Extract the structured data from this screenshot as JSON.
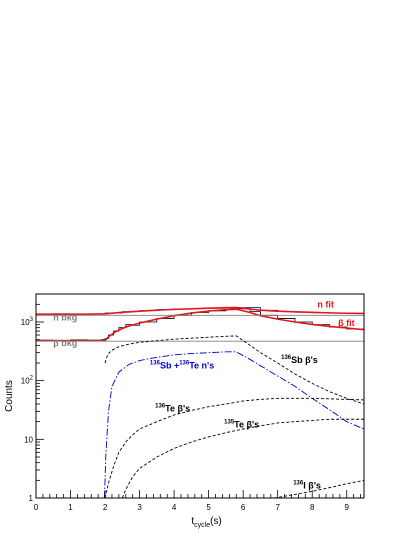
{
  "chart_data": {
    "type": "line",
    "title": "",
    "xlabel": {
      "main": "t",
      "sub": "cycle",
      "unit": "(s)"
    },
    "ylabel": "Counts",
    "xlim": [
      0,
      9.5
    ],
    "ylim": [
      1,
      3000
    ],
    "yscale": "log",
    "grid": false,
    "legend": "none",
    "x_ticks": [
      "0",
      "1",
      "2",
      "3",
      "4",
      "5",
      "6",
      "7",
      "8",
      "9"
    ],
    "x_tick_values": [
      0,
      1,
      2,
      3,
      4,
      5,
      6,
      7,
      8,
      9
    ],
    "y_ticks": [
      {
        "value": 1,
        "base": "1",
        "exp": ""
      },
      {
        "value": 10,
        "base": "10",
        "exp": ""
      },
      {
        "value": 100,
        "base": "10",
        "exp": "2"
      },
      {
        "value": 1000,
        "base": "10",
        "exp": "3"
      }
    ],
    "series": [
      {
        "color": "#000080",
        "style": "step",
        "x": [
          0,
          0.5,
          1,
          1.5,
          2,
          2.5,
          3,
          3.5,
          4,
          4.5,
          5,
          5.5,
          5.8,
          6.5,
          7,
          7.5,
          8,
          8.5,
          9,
          9.5
        ],
        "y": [
          1350,
          1380,
          1340,
          1370,
          1420,
          1500,
          1560,
          1620,
          1660,
          1700,
          1720,
          1740,
          1760,
          1580,
          1510,
          1470,
          1440,
          1420,
          1400,
          1390
        ]
      },
      {
        "color": "#000000",
        "style": "step",
        "x": [
          0,
          0.5,
          1,
          1.5,
          1.9,
          2.0,
          2.1,
          2.25,
          2.4,
          2.6,
          2.8,
          3.0,
          3.5,
          4,
          4.5,
          5,
          5.5,
          5.8,
          6.2,
          6.5,
          7,
          7.5,
          8,
          8.5,
          9,
          9.5
        ],
        "y": [
          490,
          485,
          495,
          490,
          500,
          520,
          600,
          700,
          800,
          900,
          880,
          1000,
          1150,
          1300,
          1450,
          1550,
          1620,
          1680,
          1500,
          1300,
          1150,
          1000,
          900,
          820,
          760,
          700
        ]
      },
      {
        "name": "n fit",
        "color": "#e0181e",
        "style": "solid",
        "x": [
          0,
          0.5,
          1,
          1.5,
          2,
          2.5,
          3,
          3.5,
          4,
          4.5,
          5,
          5.5,
          5.8,
          6.2,
          6.5,
          7,
          7.5,
          8,
          8.5,
          9,
          9.5
        ],
        "y": [
          1360,
          1360,
          1360,
          1360,
          1380,
          1460,
          1530,
          1590,
          1640,
          1680,
          1720,
          1750,
          1760,
          1660,
          1590,
          1530,
          1490,
          1460,
          1430,
          1410,
          1400
        ]
      },
      {
        "name": "β fit",
        "color": "#e0181e",
        "style": "solid",
        "x": [
          0,
          0.5,
          1,
          1.5,
          2,
          2.1,
          2.3,
          2.6,
          3,
          3.5,
          4,
          4.5,
          5,
          5.5,
          5.8,
          6.2,
          6.5,
          7,
          7.5,
          8,
          8.5,
          9,
          9.5
        ],
        "y": [
          480,
          480,
          480,
          480,
          480,
          560,
          680,
          820,
          960,
          1120,
          1280,
          1420,
          1540,
          1620,
          1660,
          1450,
          1280,
          1120,
          1000,
          910,
          840,
          790,
          740
        ]
      },
      {
        "name": "n bkg",
        "color": "#808080",
        "style": "solid",
        "x": [
          0,
          9.5
        ],
        "y": [
          1300,
          1300
        ]
      },
      {
        "name": "β bkg",
        "color": "#808080",
        "style": "solid",
        "x": [
          0,
          9.5
        ],
        "y": [
          470,
          470
        ]
      },
      {
        "name": "136Sb β's",
        "color": "#000000",
        "style": "dashed",
        "x": [
          2.0,
          2.05,
          2.1,
          2.2,
          2.4,
          2.7,
          3,
          3.5,
          4,
          4.5,
          5,
          5.5,
          5.8,
          6.2,
          6.5,
          7,
          7.5,
          8,
          8.5,
          9,
          9.5
        ],
        "y": [
          200,
          250,
          290,
          330,
          380,
          420,
          450,
          480,
          510,
          530,
          550,
          570,
          580,
          400,
          300,
          200,
          130,
          90,
          65,
          50,
          40
        ]
      },
      {
        "name": "136Sb + 136Te n's",
        "color": "#0000cc",
        "style": "dashdot",
        "x": [
          1.98,
          2.0,
          2.02,
          2.05,
          2.1,
          2.2,
          2.4,
          2.7,
          3,
          3.5,
          4,
          4.5,
          5,
          5.5,
          5.8,
          6.2,
          6.5,
          7,
          7.5,
          8,
          8.5,
          9,
          9.5
        ],
        "y": [
          1,
          2,
          5,
          10,
          30,
          80,
          140,
          190,
          220,
          250,
          275,
          290,
          300,
          310,
          310,
          230,
          180,
          120,
          80,
          50,
          32,
          20,
          15
        ]
      },
      {
        "name": "136Te β's",
        "color": "#000000",
        "style": "dashed",
        "x": [
          2.0,
          2.1,
          2.25,
          2.4,
          2.6,
          2.8,
          3,
          3.5,
          4,
          4.5,
          5,
          5.5,
          6,
          6.5,
          7,
          7.5,
          8,
          8.5,
          9,
          9.5
        ],
        "y": [
          1,
          1.8,
          3.5,
          6,
          9,
          12,
          15,
          20,
          26,
          31,
          36,
          40,
          45,
          48,
          50,
          50,
          50,
          49,
          48,
          47
        ]
      },
      {
        "name": "135Te β's",
        "color": "#000000",
        "style": "dashed",
        "x": [
          2.5,
          2.6,
          2.8,
          3,
          3.5,
          4,
          4.5,
          5,
          5.5,
          6,
          6.5,
          7,
          7.5,
          8,
          8.5,
          9,
          9.5
        ],
        "y": [
          1,
          1.4,
          2.3,
          3.2,
          5,
          7,
          9,
          11,
          13,
          15,
          17,
          19,
          20,
          21,
          22,
          22,
          22
        ]
      },
      {
        "name": "136I β's",
        "color": "#000000",
        "style": "dashed",
        "x": [
          6.9,
          7.0,
          7.5,
          8,
          8.5,
          9,
          9.5
        ],
        "y": [
          1,
          1.02,
          1.15,
          1.3,
          1.5,
          1.75,
          2.0
        ]
      }
    ],
    "annotations": [
      {
        "id": "n-fit",
        "color": "#e0181e",
        "x": 8.15,
        "y": 1750,
        "parts": [
          {
            "t": "n fit",
            "sup": false
          }
        ]
      },
      {
        "id": "beta-fit",
        "color": "#e0181e",
        "x": 8.75,
        "y": 850,
        "parts": [
          {
            "t": "β fit",
            "sup": false
          }
        ]
      },
      {
        "id": "n-bkg",
        "color": "#808080",
        "x": 0.5,
        "y": 1050,
        "weight": "normal",
        "parts": [
          {
            "t": "n bkg",
            "sup": false
          }
        ]
      },
      {
        "id": "beta-bkg",
        "color": "#808080",
        "x": 0.5,
        "y": 390,
        "weight": "normal",
        "parts": [
          {
            "t": "β bkg",
            "sup": false
          }
        ]
      },
      {
        "id": "sb136-beta",
        "color": "#000000",
        "x": 7.1,
        "y": 200,
        "parts": [
          {
            "t": "136",
            "sup": true
          },
          {
            "t": "Sb  β's",
            "sup": false
          }
        ]
      },
      {
        "id": "sb-te-n",
        "color": "#0000cc",
        "x": 3.3,
        "y": 160,
        "parts": [
          {
            "t": "136",
            "sup": true
          },
          {
            "t": "Sb +",
            "sup": false
          },
          {
            "t": "136",
            "sup": true
          },
          {
            "t": "Te n's",
            "sup": false
          }
        ]
      },
      {
        "id": "te136-beta",
        "color": "#000000",
        "x": 3.45,
        "y": 30,
        "parts": [
          {
            "t": "136",
            "sup": true
          },
          {
            "t": "Te  β's",
            "sup": false
          }
        ]
      },
      {
        "id": "te135-beta",
        "color": "#000000",
        "x": 5.45,
        "y": 16,
        "parts": [
          {
            "t": "135",
            "sup": true
          },
          {
            "t": "Te  β's",
            "sup": false
          }
        ]
      },
      {
        "id": "i136-beta",
        "color": "#000000",
        "x": 7.45,
        "y": 1.45,
        "parts": [
          {
            "t": "136",
            "sup": true
          },
          {
            "t": "I  β's",
            "sup": false
          }
        ]
      }
    ]
  }
}
